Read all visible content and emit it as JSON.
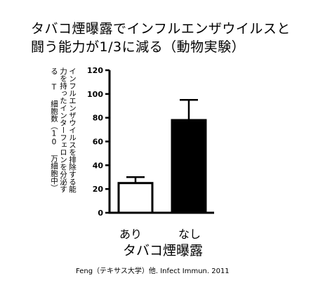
{
  "title_lines": [
    "タバコ煙曝露でインフルエンザウイルスと",
    "闘う能力が1/3に減る（動物実験）"
  ],
  "source": "Feng（テキサス大学）他. Infect Immun. 2011",
  "colors": {
    "bar_ari": "#ffffff",
    "bar_nashi": "#000000",
    "stroke": "#000000"
  },
  "chart_data": {
    "type": "bar",
    "categories": [
      "あり",
      "なし"
    ],
    "values": [
      25,
      78
    ],
    "error_upper": [
      30,
      95
    ],
    "xlabel": "タバコ煙曝露",
    "ylabel_lines": [
      "インフルエンザウイルスを排除する能",
      "力を持ったインターフェロンを分泌す",
      "る T 細胞数（10 万細胞中）"
    ],
    "ylim": [
      0,
      120
    ],
    "yticks": [
      "0",
      "20",
      "40",
      "60",
      "80",
      "100",
      "120"
    ],
    "grid": false,
    "legend": "none"
  }
}
